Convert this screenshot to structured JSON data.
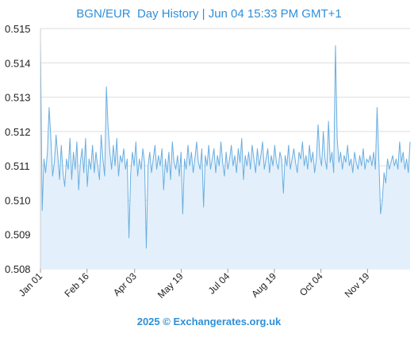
{
  "title": "BGN/EUR  Day History | Jun 04 15:33 PM GMT+1",
  "footer": "2025 © Exchangerates.org.uk",
  "colors": {
    "accent": "#2f8fd8",
    "line": "#6aaee0",
    "fill": "#e3f0fb",
    "grid": "#dddddd"
  },
  "chart_data": {
    "type": "area",
    "title": "BGN/EUR  Day History | Jun 04 15:33 PM GMT+1",
    "xlabel": "",
    "ylabel": "",
    "ylim": [
      0.508,
      0.515
    ],
    "y_ticks": [
      "0.508",
      "0.509",
      "0.510",
      "0.511",
      "0.512",
      "0.513",
      "0.514",
      "0.515"
    ],
    "x_ticks": [
      "Jan 01",
      "Feb 16",
      "Apr 03",
      "May 19",
      "Jul 04",
      "Aug 19",
      "Oct 04",
      "Nov 19"
    ],
    "x_range": [
      "2024-01-01",
      "2024-12-31"
    ],
    "grid": true,
    "series": [
      {
        "values": [
          0.5147,
          0.5097,
          0.5112,
          0.5108,
          0.5114,
          0.5127,
          0.5118,
          0.5107,
          0.5111,
          0.5119,
          0.5113,
          0.5106,
          0.5116,
          0.5108,
          0.5104,
          0.5112,
          0.5109,
          0.5118,
          0.5106,
          0.5114,
          0.5109,
          0.5117,
          0.5103,
          0.5111,
          0.5115,
          0.5108,
          0.5118,
          0.5104,
          0.5112,
          0.5109,
          0.5116,
          0.5108,
          0.5114,
          0.511,
          0.5106,
          0.5119,
          0.5112,
          0.5107,
          0.5133,
          0.5121,
          0.5114,
          0.5109,
          0.5116,
          0.511,
          0.5118,
          0.5107,
          0.5113,
          0.5111,
          0.5115,
          0.5109,
          0.5112,
          0.5089,
          0.5108,
          0.5114,
          0.511,
          0.5117,
          0.5107,
          0.5112,
          0.5109,
          0.5115,
          0.5111,
          0.5086,
          0.511,
          0.5114,
          0.5108,
          0.5112,
          0.5116,
          0.5109,
          0.5113,
          0.511,
          0.5115,
          0.5103,
          0.5112,
          0.5108,
          0.5114,
          0.5106,
          0.5117,
          0.5111,
          0.5109,
          0.5113,
          0.5107,
          0.5114,
          0.5096,
          0.5112,
          0.5109,
          0.5116,
          0.511,
          0.5114,
          0.5108,
          0.5112,
          0.5117,
          0.5111,
          0.5109,
          0.5115,
          0.5098,
          0.5113,
          0.511,
          0.5116,
          0.5109,
          0.5112,
          0.5115,
          0.5108,
          0.5113,
          0.511,
          0.5117,
          0.5111,
          0.5107,
          0.5114,
          0.5109,
          0.5112,
          0.5116,
          0.511,
          0.5113,
          0.5108,
          0.5115,
          0.5111,
          0.5118,
          0.5106,
          0.5113,
          0.511,
          0.5114,
          0.5109,
          0.5116,
          0.5112,
          0.5108,
          0.5115,
          0.511,
          0.5113,
          0.5117,
          0.5109,
          0.5112,
          0.5115,
          0.5108,
          0.5113,
          0.511,
          0.5116,
          0.5111,
          0.5109,
          0.5114,
          0.5112,
          0.5102,
          0.5113,
          0.511,
          0.5116,
          0.5109,
          0.5112,
          0.5115,
          0.5111,
          0.5108,
          0.5114,
          0.5112,
          0.5117,
          0.511,
          0.5113,
          0.5109,
          0.5116,
          0.5111,
          0.5114,
          0.5108,
          0.5112,
          0.5122,
          0.5113,
          0.511,
          0.512,
          0.5112,
          0.5109,
          0.5123,
          0.5111,
          0.5114,
          0.5108,
          0.5145,
          0.5118,
          0.5111,
          0.5114,
          0.5109,
          0.5113,
          0.5111,
          0.5116,
          0.511,
          0.5112,
          0.5108,
          0.5114,
          0.5111,
          0.5109,
          0.5113,
          0.511,
          0.5115,
          0.5109,
          0.5112,
          0.5111,
          0.5113,
          0.511,
          0.5114,
          0.5109,
          0.5127,
          0.5112,
          0.5096,
          0.51,
          0.5108,
          0.5105,
          0.5112,
          0.5109,
          0.5111,
          0.5113,
          0.511,
          0.5112,
          0.5109,
          0.5117,
          0.5111,
          0.5114,
          0.5109,
          0.5112,
          0.5108,
          0.5117
        ]
      }
    ]
  }
}
